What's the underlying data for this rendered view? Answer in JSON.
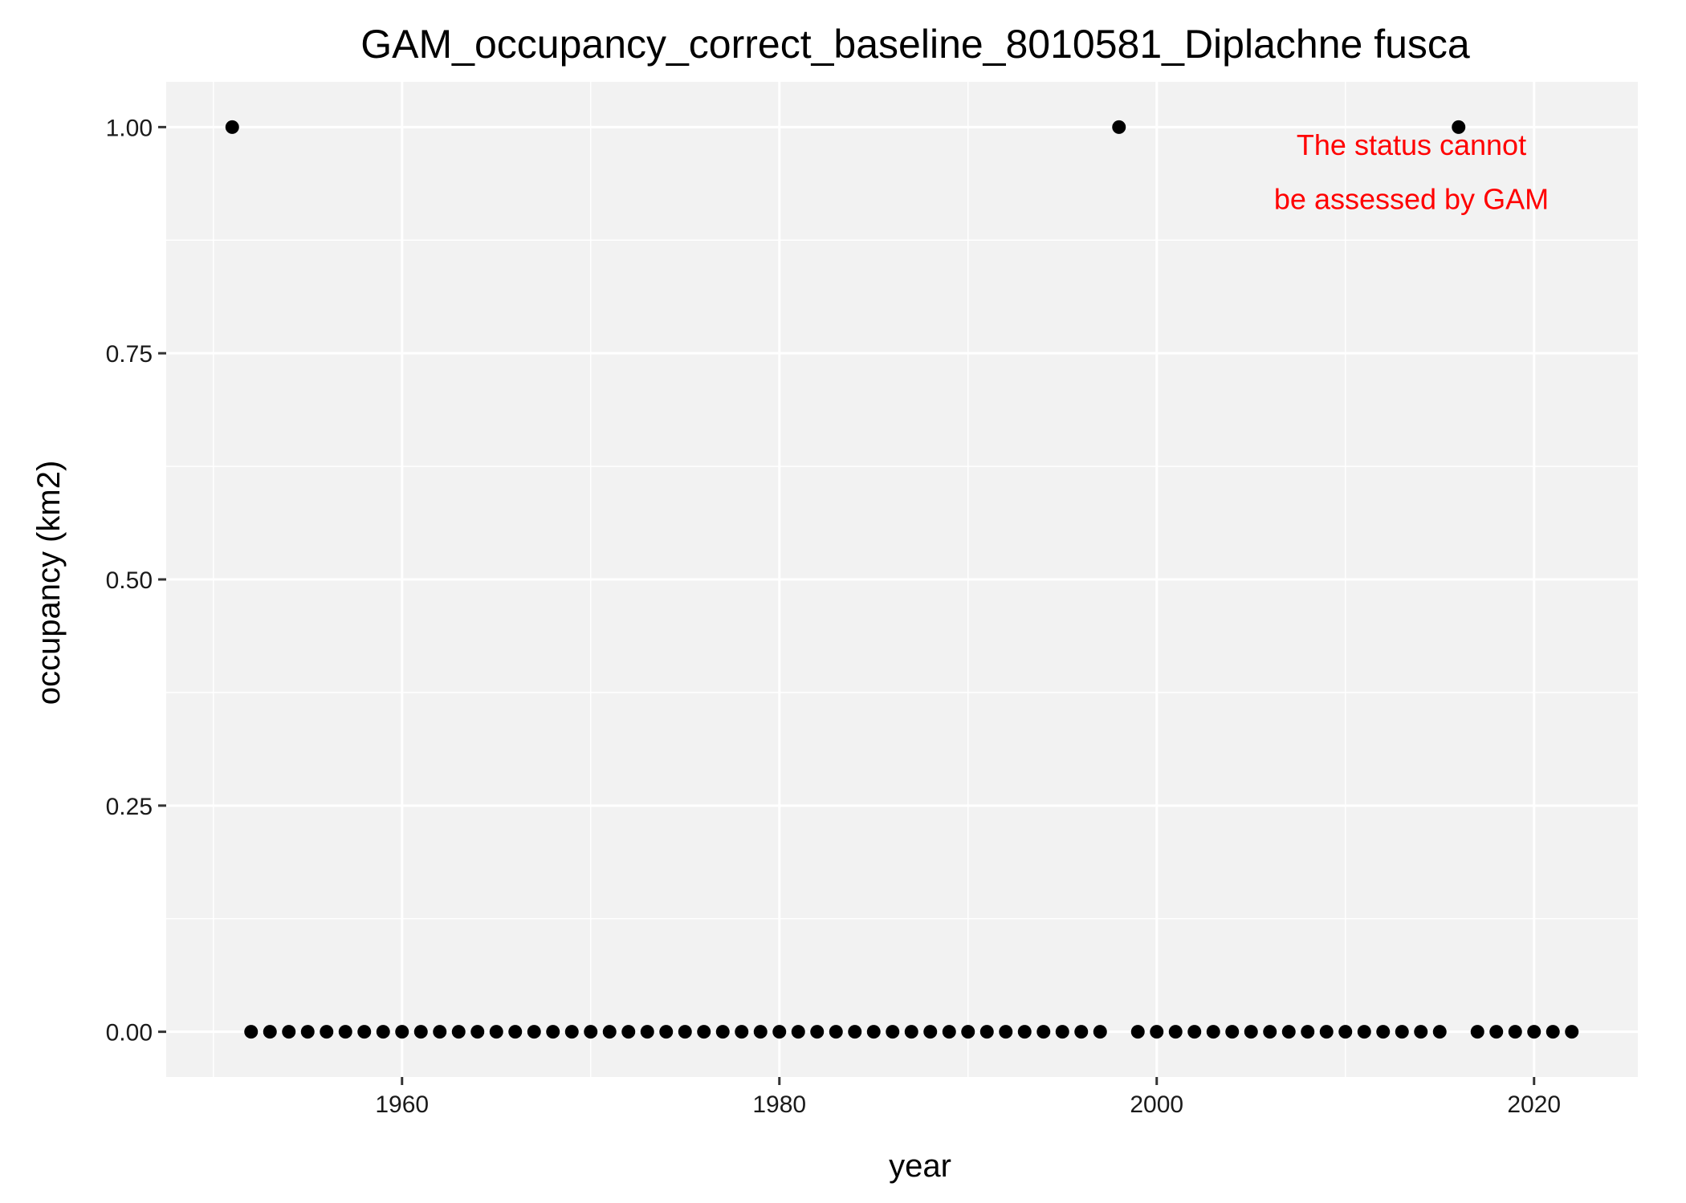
{
  "chart_data": {
    "type": "scatter",
    "title": "GAM_occupancy_correct_baseline_8010581_Diplachne fusca",
    "xlabel": "year",
    "ylabel": "occupancy (km2)",
    "xlim": [
      1947.5,
      2025.5
    ],
    "ylim": [
      -0.05,
      1.05
    ],
    "x_ticks": [
      1960,
      1980,
      2000,
      2020
    ],
    "x_tick_labels": [
      "1960",
      "1980",
      "2000",
      "2020"
    ],
    "y_ticks": [
      0,
      0.25,
      0.5,
      0.75,
      1
    ],
    "y_tick_labels": [
      "0.00",
      "0.25",
      "0.50",
      "0.75",
      "1.00"
    ],
    "grid": true,
    "background_color": "#f2f2f2",
    "grid_color": "#ffffff",
    "point_color": "#000000",
    "annotation": {
      "lines": [
        "The status cannot",
        "be assessed by GAM"
      ],
      "color": "#ff0000",
      "x": 2013.5,
      "y": [
        0.98,
        0.92
      ]
    },
    "x": [
      1951,
      1952,
      1953,
      1954,
      1955,
      1956,
      1957,
      1958,
      1959,
      1960,
      1961,
      1962,
      1963,
      1964,
      1965,
      1966,
      1967,
      1968,
      1969,
      1970,
      1971,
      1972,
      1973,
      1974,
      1975,
      1976,
      1977,
      1978,
      1979,
      1980,
      1981,
      1982,
      1983,
      1984,
      1985,
      1986,
      1987,
      1988,
      1989,
      1990,
      1991,
      1992,
      1993,
      1994,
      1995,
      1996,
      1997,
      1998,
      1999,
      2000,
      2001,
      2002,
      2003,
      2004,
      2005,
      2006,
      2007,
      2008,
      2009,
      2010,
      2011,
      2012,
      2013,
      2014,
      2015,
      2016,
      2017,
      2018,
      2019,
      2020,
      2021,
      2022
    ],
    "y": [
      1,
      0,
      0,
      0,
      0,
      0,
      0,
      0,
      0,
      0,
      0,
      0,
      0,
      0,
      0,
      0,
      0,
      0,
      0,
      0,
      0,
      0,
      0,
      0,
      0,
      0,
      0,
      0,
      0,
      0,
      0,
      0,
      0,
      0,
      0,
      0,
      0,
      0,
      0,
      0,
      0,
      0,
      0,
      0,
      0,
      0,
      0,
      1,
      0,
      0,
      0,
      0,
      0,
      0,
      0,
      0,
      0,
      0,
      0,
      0,
      0,
      0,
      0,
      0,
      0,
      1,
      0,
      0,
      0,
      0,
      0,
      0
    ]
  }
}
